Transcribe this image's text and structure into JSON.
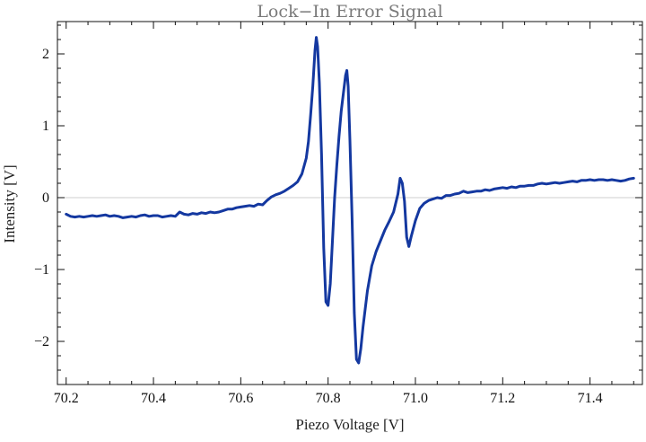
{
  "chart_data": {
    "type": "line",
    "title": "Lock−In Error Signal",
    "xlabel": "Piezo Voltage [V]",
    "ylabel": "Intensity [V]",
    "xlim": [
      70.18,
      71.52
    ],
    "ylim": [
      -2.6,
      2.45
    ],
    "x_ticks": [
      70.2,
      70.4,
      70.6,
      70.8,
      71.0,
      71.2,
      71.4
    ],
    "x_tick_labels": [
      "70.2",
      "70.4",
      "70.6",
      "70.8",
      "71.0",
      "71.2",
      "71.4"
    ],
    "y_ticks": [
      -2,
      -1,
      0,
      1,
      2
    ],
    "y_tick_labels": [
      "−2",
      "−1",
      "0",
      "1",
      "2"
    ],
    "x_minor_step": 0.05,
    "y_minor_step": 0.2,
    "grid": false,
    "zero_line": true,
    "colors": {
      "series": "#1438a0",
      "zero_line": "#cfcfcf",
      "title": "#7a7a7a"
    },
    "series": [
      {
        "points": [
          [
            70.2,
            -0.23
          ],
          [
            70.21,
            -0.26
          ],
          [
            70.22,
            -0.27
          ],
          [
            70.23,
            -0.26
          ],
          [
            70.24,
            -0.27
          ],
          [
            70.25,
            -0.26
          ],
          [
            70.26,
            -0.25
          ],
          [
            70.27,
            -0.26
          ],
          [
            70.28,
            -0.25
          ],
          [
            70.29,
            -0.24
          ],
          [
            70.3,
            -0.26
          ],
          [
            70.31,
            -0.25
          ],
          [
            70.32,
            -0.26
          ],
          [
            70.33,
            -0.28
          ],
          [
            70.34,
            -0.27
          ],
          [
            70.35,
            -0.26
          ],
          [
            70.36,
            -0.27
          ],
          [
            70.37,
            -0.25
          ],
          [
            70.38,
            -0.24
          ],
          [
            70.39,
            -0.26
          ],
          [
            70.4,
            -0.25
          ],
          [
            70.41,
            -0.25
          ],
          [
            70.42,
            -0.27
          ],
          [
            70.43,
            -0.26
          ],
          [
            70.44,
            -0.25
          ],
          [
            70.45,
            -0.26
          ],
          [
            70.46,
            -0.2
          ],
          [
            70.47,
            -0.23
          ],
          [
            70.48,
            -0.24
          ],
          [
            70.49,
            -0.22
          ],
          [
            70.5,
            -0.23
          ],
          [
            70.51,
            -0.21
          ],
          [
            70.52,
            -0.22
          ],
          [
            70.53,
            -0.2
          ],
          [
            70.54,
            -0.21
          ],
          [
            70.55,
            -0.2
          ],
          [
            70.56,
            -0.18
          ],
          [
            70.57,
            -0.16
          ],
          [
            70.58,
            -0.16
          ],
          [
            70.59,
            -0.14
          ],
          [
            70.6,
            -0.13
          ],
          [
            70.61,
            -0.12
          ],
          [
            70.62,
            -0.11
          ],
          [
            70.63,
            -0.12
          ],
          [
            70.64,
            -0.09
          ],
          [
            70.65,
            -0.1
          ],
          [
            70.66,
            -0.04
          ],
          [
            70.67,
            0.01
          ],
          [
            70.68,
            0.04
          ],
          [
            70.69,
            0.06
          ],
          [
            70.7,
            0.09
          ],
          [
            70.71,
            0.13
          ],
          [
            70.72,
            0.17
          ],
          [
            70.73,
            0.22
          ],
          [
            70.74,
            0.33
          ],
          [
            70.75,
            0.55
          ],
          [
            70.755,
            0.78
          ],
          [
            70.76,
            1.15
          ],
          [
            70.765,
            1.55
          ],
          [
            70.77,
            2.05
          ],
          [
            70.773,
            2.23
          ],
          [
            70.776,
            2.1
          ],
          [
            70.78,
            1.6
          ],
          [
            70.785,
            0.6
          ],
          [
            70.79,
            -0.7
          ],
          [
            70.795,
            -1.45
          ],
          [
            70.8,
            -1.5
          ],
          [
            70.805,
            -1.2
          ],
          [
            70.81,
            -0.6
          ],
          [
            70.815,
            0.0
          ],
          [
            70.82,
            0.45
          ],
          [
            70.825,
            0.85
          ],
          [
            70.83,
            1.2
          ],
          [
            70.835,
            1.45
          ],
          [
            70.84,
            1.7
          ],
          [
            70.843,
            1.77
          ],
          [
            70.846,
            1.55
          ],
          [
            70.85,
            0.8
          ],
          [
            70.855,
            -0.3
          ],
          [
            70.86,
            -1.6
          ],
          [
            70.865,
            -2.25
          ],
          [
            70.87,
            -2.3
          ],
          [
            70.875,
            -2.1
          ],
          [
            70.88,
            -1.8
          ],
          [
            70.89,
            -1.3
          ],
          [
            70.9,
            -0.95
          ],
          [
            70.91,
            -0.75
          ],
          [
            70.92,
            -0.6
          ],
          [
            70.93,
            -0.45
          ],
          [
            70.94,
            -0.33
          ],
          [
            70.95,
            -0.2
          ],
          [
            70.96,
            0.05
          ],
          [
            70.965,
            0.27
          ],
          [
            70.97,
            0.2
          ],
          [
            70.975,
            -0.05
          ],
          [
            70.98,
            -0.55
          ],
          [
            70.985,
            -0.68
          ],
          [
            70.99,
            -0.55
          ],
          [
            71.0,
            -0.32
          ],
          [
            71.01,
            -0.15
          ],
          [
            71.02,
            -0.08
          ],
          [
            71.03,
            -0.04
          ],
          [
            71.04,
            -0.02
          ],
          [
            71.05,
            0.0
          ],
          [
            71.06,
            -0.01
          ],
          [
            71.07,
            0.03
          ],
          [
            71.08,
            0.03
          ],
          [
            71.09,
            0.05
          ],
          [
            71.1,
            0.06
          ],
          [
            71.11,
            0.09
          ],
          [
            71.12,
            0.07
          ],
          [
            71.13,
            0.08
          ],
          [
            71.14,
            0.09
          ],
          [
            71.15,
            0.09
          ],
          [
            71.16,
            0.11
          ],
          [
            71.17,
            0.1
          ],
          [
            71.18,
            0.12
          ],
          [
            71.19,
            0.13
          ],
          [
            71.2,
            0.14
          ],
          [
            71.21,
            0.13
          ],
          [
            71.22,
            0.15
          ],
          [
            71.23,
            0.14
          ],
          [
            71.24,
            0.16
          ],
          [
            71.25,
            0.16
          ],
          [
            71.26,
            0.17
          ],
          [
            71.27,
            0.17
          ],
          [
            71.28,
            0.19
          ],
          [
            71.29,
            0.2
          ],
          [
            71.3,
            0.19
          ],
          [
            71.31,
            0.2
          ],
          [
            71.32,
            0.21
          ],
          [
            71.33,
            0.2
          ],
          [
            71.34,
            0.21
          ],
          [
            71.35,
            0.22
          ],
          [
            71.36,
            0.23
          ],
          [
            71.37,
            0.22
          ],
          [
            71.38,
            0.24
          ],
          [
            71.39,
            0.24
          ],
          [
            71.4,
            0.25
          ],
          [
            71.41,
            0.24
          ],
          [
            71.42,
            0.25
          ],
          [
            71.43,
            0.25
          ],
          [
            71.44,
            0.24
          ],
          [
            71.45,
            0.25
          ],
          [
            71.46,
            0.24
          ],
          [
            71.47,
            0.23
          ],
          [
            71.48,
            0.24
          ],
          [
            71.49,
            0.26
          ],
          [
            71.5,
            0.27
          ]
        ]
      }
    ]
  }
}
